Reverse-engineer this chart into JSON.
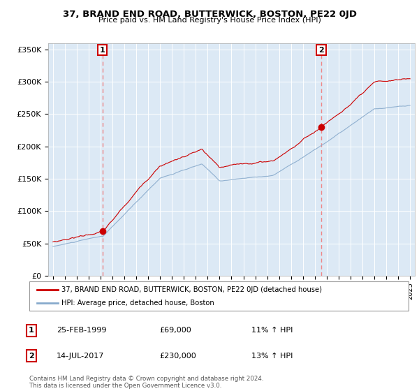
{
  "title": "37, BRAND END ROAD, BUTTERWICK, BOSTON, PE22 0JD",
  "subtitle": "Price paid vs. HM Land Registry's House Price Index (HPI)",
  "ylabel_ticks": [
    "£0",
    "£50K",
    "£100K",
    "£150K",
    "£200K",
    "£250K",
    "£300K",
    "£350K"
  ],
  "ytick_vals": [
    0,
    50000,
    100000,
    150000,
    200000,
    250000,
    300000,
    350000
  ],
  "ylim": [
    0,
    360000
  ],
  "sale1_x": 1999.15,
  "sale1_y": 69000,
  "sale2_x": 2017.54,
  "sale2_y": 230000,
  "red_line_color": "#cc0000",
  "blue_line_color": "#88aacc",
  "vline_color": "#ee8888",
  "marker_color": "#cc0000",
  "plot_bg_color": "#dce9f5",
  "legend_label1": "37, BRAND END ROAD, BUTTERWICK, BOSTON, PE22 0JD (detached house)",
  "legend_label2": "HPI: Average price, detached house, Boston",
  "table_row1": [
    "1",
    "25-FEB-1999",
    "£69,000",
    "11% ↑ HPI"
  ],
  "table_row2": [
    "2",
    "14-JUL-2017",
    "£230,000",
    "13% ↑ HPI"
  ],
  "footnote": "Contains HM Land Registry data © Crown copyright and database right 2024.\nThis data is licensed under the Open Government Licence v3.0.",
  "xlim_start": 1994.6,
  "xlim_end": 2025.4,
  "grid_color": "#ffffff"
}
